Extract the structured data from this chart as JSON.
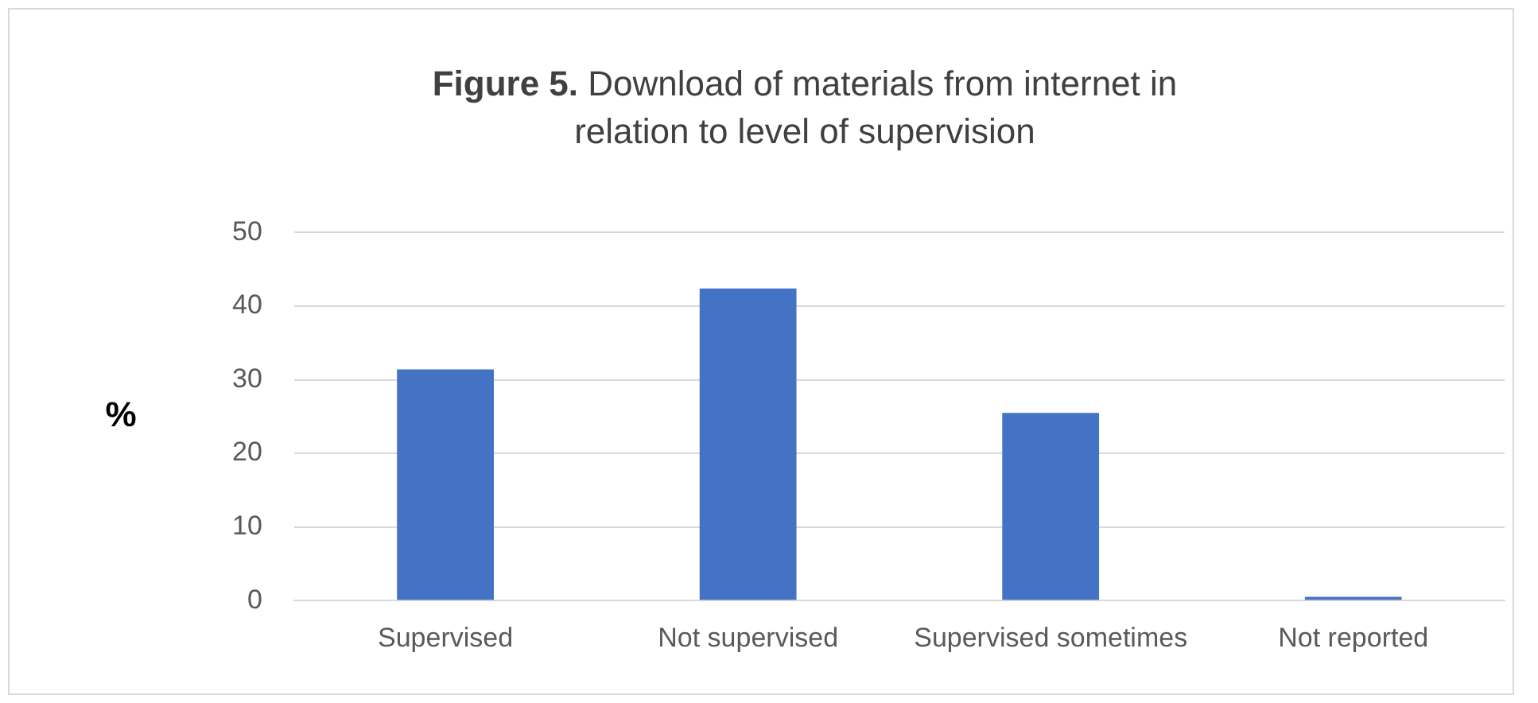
{
  "chart_data": {
    "type": "bar",
    "title": "Figure 5. Download of materials from internet in relation to level of supervision",
    "ylabel": "%",
    "categories": [
      "Supervised",
      "Not supervised",
      "Supervised sometimes",
      "Not reported"
    ],
    "values": [
      31.4,
      42.4,
      25.5,
      0.5
    ],
    "color": "#4472c4",
    "ylim": [
      0,
      50
    ],
    "yticks": [
      0,
      10,
      20,
      30,
      40,
      50
    ],
    "grid": "y"
  }
}
